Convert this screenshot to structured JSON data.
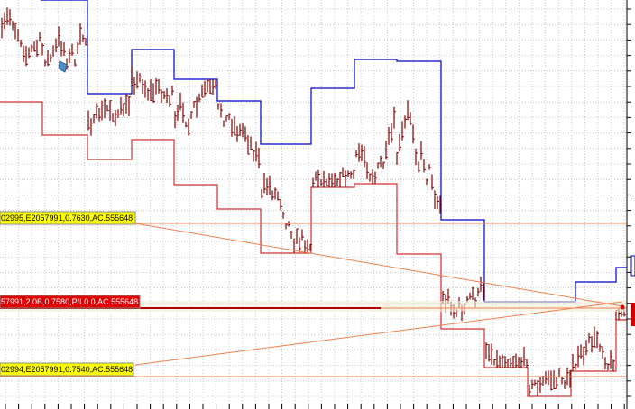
{
  "orders": [
    "02995,E2057991,0.7630,AC.555648",
    "57991,2.0B,0.7580,P/L0.0,AC.555648",
    "02994,E2057991,0.7540,AC.555648"
  ]
}
